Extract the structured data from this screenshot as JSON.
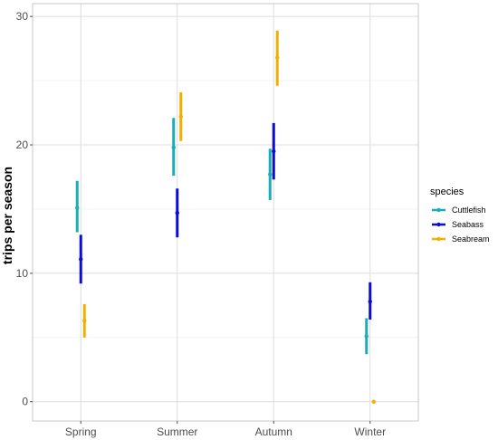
{
  "chart_data": {
    "type": "errorbar",
    "categories": [
      "Spring",
      "Summer",
      "Autumn",
      "Winter"
    ],
    "ylabel": "trips per season",
    "xlabel": "",
    "ylim": [
      -1.5,
      31
    ],
    "yticks": [
      0,
      10,
      20,
      30
    ],
    "grid": true,
    "legend": {
      "title": "species",
      "placement": "right"
    },
    "series": [
      {
        "name": "Cuttlefish",
        "color": "#1aadb5",
        "mean": [
          15.1,
          19.8,
          17.7,
          5.1
        ],
        "lower": [
          13.2,
          17.6,
          15.7,
          3.7
        ],
        "upper": [
          17.2,
          22.1,
          19.7,
          6.5
        ]
      },
      {
        "name": "Seabass",
        "color": "#0b0bd3",
        "mean": [
          11.1,
          14.7,
          19.5,
          7.8
        ],
        "lower": [
          9.2,
          12.8,
          17.3,
          6.4
        ],
        "upper": [
          13.0,
          16.6,
          21.7,
          9.3
        ]
      },
      {
        "name": "Seabream",
        "color": "#f0b000",
        "mean": [
          6.3,
          22.2,
          26.8,
          0
        ],
        "lower": [
          5.0,
          20.3,
          24.6,
          0
        ],
        "upper": [
          7.6,
          24.1,
          28.9,
          0
        ]
      }
    ]
  }
}
